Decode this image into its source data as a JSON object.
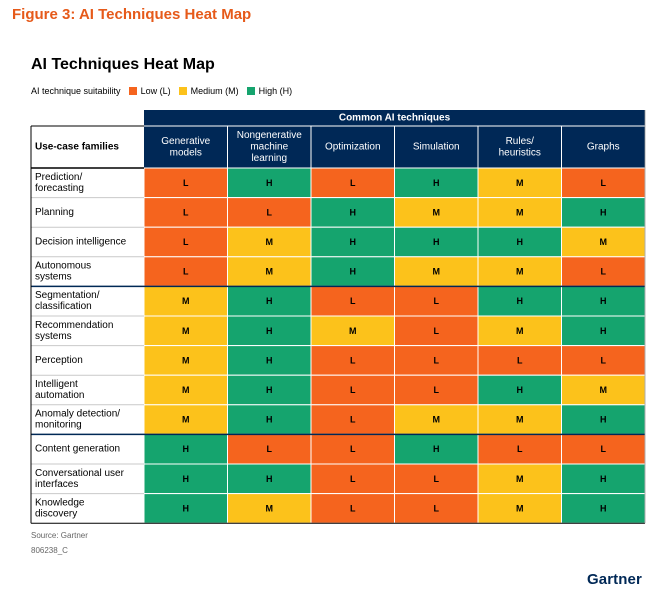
{
  "figure_title": "Figure 3: AI Techniques Heat Map",
  "source": "Source: Gartner",
  "doc_id": "806238_C",
  "brand": "Gartner",
  "colors": {
    "L": "#f5641e",
    "M": "#fcc21b",
    "H": "#15a46e",
    "header": "#002856",
    "header_text": "#ffffff",
    "grid": "#ffffff"
  },
  "chart_data": {
    "type": "heatmap",
    "title": "AI Techniques Heat Map",
    "legend_title": "AI technique suitability",
    "legend": [
      {
        "key": "L",
        "label": "Low (L)"
      },
      {
        "key": "M",
        "label": "Medium (M)"
      },
      {
        "key": "H",
        "label": "High (H)"
      }
    ],
    "group_header": "Common AI techniques",
    "row_header": "Use-case families",
    "columns": [
      [
        "Generative",
        "models"
      ],
      [
        "Nongenerative",
        "machine",
        "learning"
      ],
      [
        "Optimization"
      ],
      [
        "Simulation"
      ],
      [
        "Rules/",
        "heuristics"
      ],
      [
        "Graphs"
      ]
    ],
    "rows": [
      [
        "Prediction/",
        "forecasting"
      ],
      [
        "Planning"
      ],
      [
        "Decision intelligence"
      ],
      [
        "Autonomous",
        "systems"
      ],
      [
        "Segmentation/",
        "classification"
      ],
      [
        "Recommendation",
        "systems"
      ],
      [
        "Perception"
      ],
      [
        "Intelligent",
        "automation"
      ],
      [
        "Anomaly detection/",
        "monitoring"
      ],
      [
        "Content generation"
      ],
      [
        "Conversational user",
        "interfaces"
      ],
      [
        "Knowledge",
        "discovery"
      ]
    ],
    "values": [
      [
        "L",
        "H",
        "L",
        "H",
        "M",
        "L"
      ],
      [
        "L",
        "L",
        "H",
        "M",
        "M",
        "H"
      ],
      [
        "L",
        "M",
        "H",
        "H",
        "H",
        "M"
      ],
      [
        "L",
        "M",
        "H",
        "M",
        "M",
        "L"
      ],
      [
        "M",
        "H",
        "L",
        "L",
        "H",
        "H"
      ],
      [
        "M",
        "H",
        "M",
        "L",
        "M",
        "H"
      ],
      [
        "M",
        "H",
        "L",
        "L",
        "L",
        "L"
      ],
      [
        "M",
        "H",
        "L",
        "L",
        "H",
        "M"
      ],
      [
        "M",
        "H",
        "L",
        "M",
        "M",
        "H"
      ],
      [
        "H",
        "L",
        "L",
        "H",
        "L",
        "L"
      ],
      [
        "H",
        "H",
        "L",
        "L",
        "M",
        "H"
      ],
      [
        "H",
        "M",
        "L",
        "L",
        "M",
        "H"
      ]
    ],
    "group_separators_after_rows": [
      3,
      8
    ]
  }
}
